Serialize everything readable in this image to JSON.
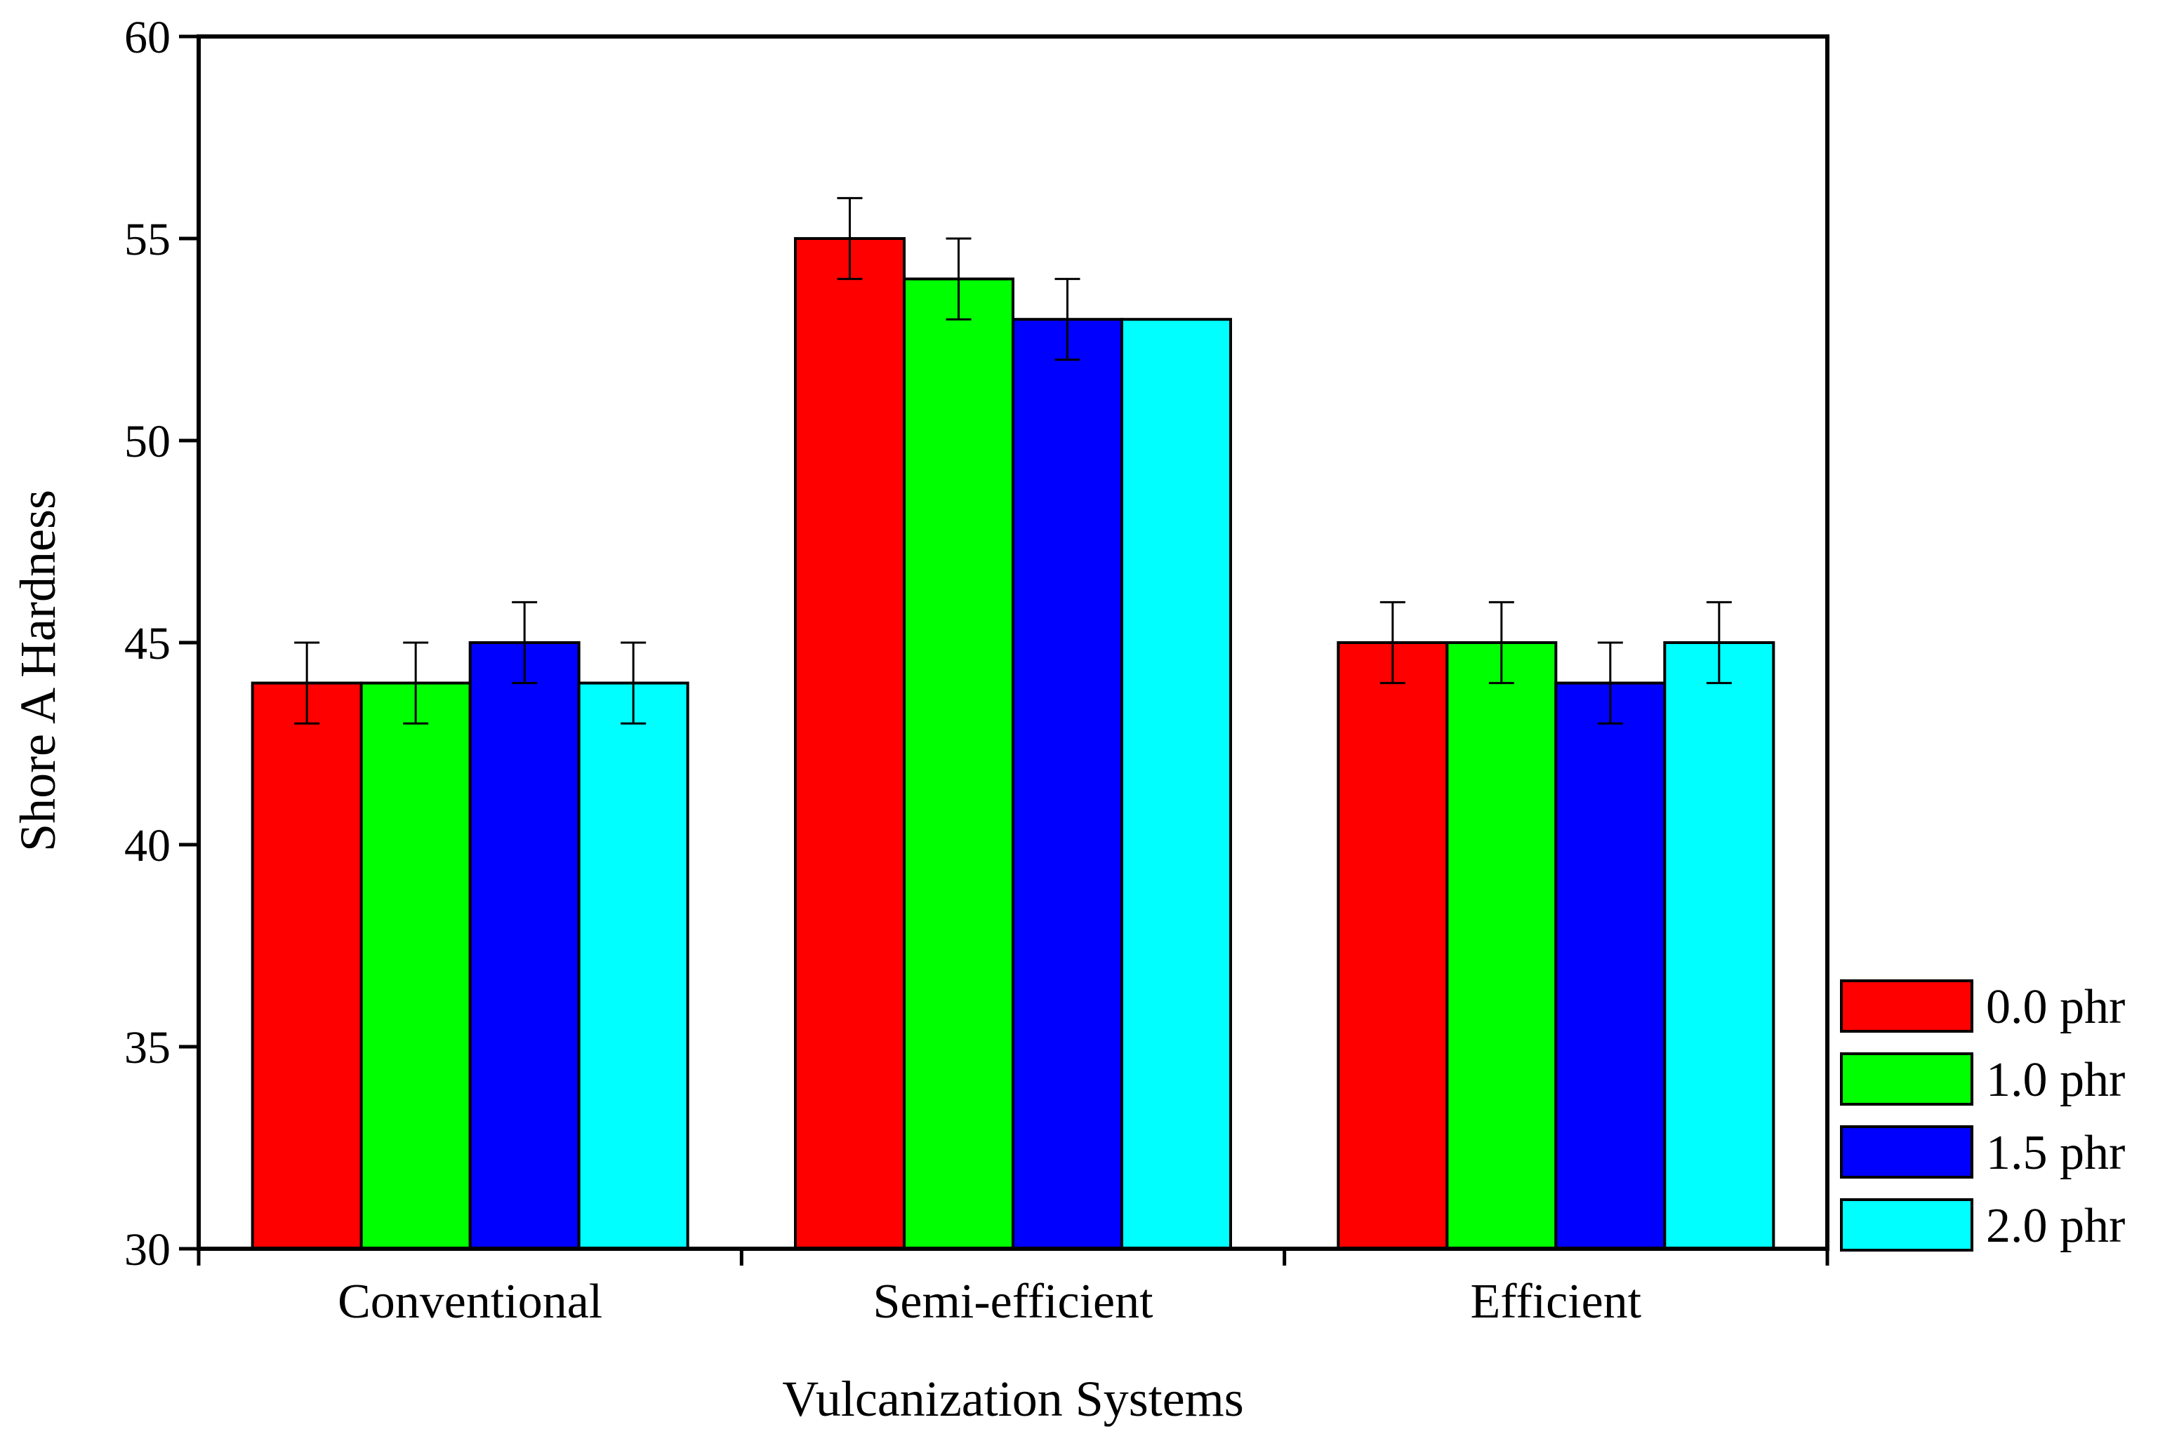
{
  "chart_data": {
    "type": "bar",
    "title": "",
    "xlabel": "Vulcanization Systems",
    "ylabel": "Shore A Hardness",
    "ylim": [
      30,
      60
    ],
    "yticks": [
      "30",
      "35",
      "40",
      "45",
      "50",
      "55",
      "60"
    ],
    "categories": [
      "Conventional",
      "Semi-efficient",
      "Efficient"
    ],
    "series": [
      {
        "name": "0.0 phr",
        "color": "#ff0000",
        "values": [
          44,
          55,
          45
        ],
        "errors": [
          1,
          1,
          1
        ]
      },
      {
        "name": "1.0 phr",
        "color": "#00ff00",
        "values": [
          44,
          54,
          45
        ],
        "errors": [
          1,
          1,
          1
        ]
      },
      {
        "name": "1.5 phr",
        "color": "#0000ff",
        "values": [
          45,
          53,
          44
        ],
        "errors": [
          1,
          1,
          1
        ]
      },
      {
        "name": "2.0 phr",
        "color": "#00ffff",
        "values": [
          44,
          53,
          45
        ],
        "errors": [
          1,
          0,
          1
        ]
      }
    ],
    "legend_position": "right, bottom",
    "grid": false
  }
}
